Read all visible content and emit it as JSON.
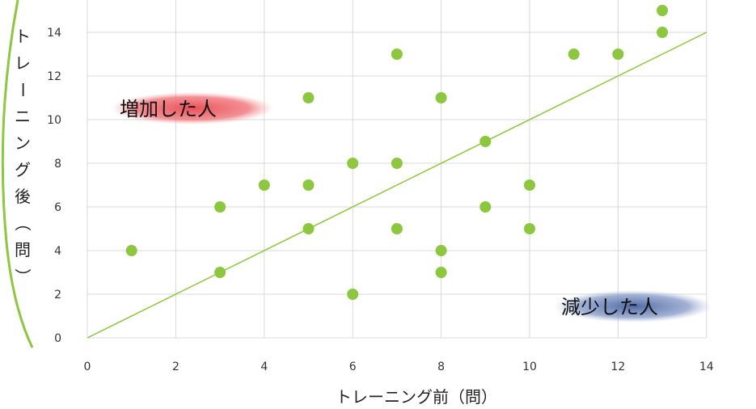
{
  "chart_data": {
    "type": "scatter",
    "xlabel": "トレーニング前（問）",
    "ylabel": "トレーニング後（問）",
    "ylabel_chars": [
      "ト",
      "レ",
      "ー",
      "ニ",
      "ン",
      "グ",
      "後",
      "（",
      "問",
      "）"
    ],
    "xlim": [
      0,
      14
    ],
    "ylim": [
      0,
      15
    ],
    "xticks": [
      0,
      2,
      4,
      6,
      8,
      10,
      12,
      14
    ],
    "yticks": [
      0,
      2,
      4,
      6,
      8,
      10,
      12,
      14
    ],
    "grid": true,
    "point_color": "#8dc63f",
    "line_color": "#8dc63f",
    "points": [
      {
        "x": 1,
        "y": 4
      },
      {
        "x": 3,
        "y": 6
      },
      {
        "x": 3,
        "y": 3
      },
      {
        "x": 4,
        "y": 7
      },
      {
        "x": 5,
        "y": 11
      },
      {
        "x": 5,
        "y": 7
      },
      {
        "x": 5,
        "y": 5
      },
      {
        "x": 6,
        "y": 8
      },
      {
        "x": 6,
        "y": 2
      },
      {
        "x": 7,
        "y": 13
      },
      {
        "x": 7,
        "y": 8
      },
      {
        "x": 7,
        "y": 5
      },
      {
        "x": 8,
        "y": 11
      },
      {
        "x": 8,
        "y": 4
      },
      {
        "x": 8,
        "y": 3
      },
      {
        "x": 9,
        "y": 9
      },
      {
        "x": 9,
        "y": 6
      },
      {
        "x": 10,
        "y": 7
      },
      {
        "x": 10,
        "y": 5
      },
      {
        "x": 11,
        "y": 13
      },
      {
        "x": 12,
        "y": 13
      },
      {
        "x": 13,
        "y": 15
      },
      {
        "x": 13,
        "y": 14
      }
    ],
    "reference_line": {
      "x": [
        0,
        14
      ],
      "y": [
        0,
        14
      ]
    },
    "annotations": {
      "increase": {
        "text": "増加した人",
        "color": "#e8484f"
      },
      "decrease": {
        "text": "減少した人",
        "color": "#3b5a9a"
      }
    }
  }
}
